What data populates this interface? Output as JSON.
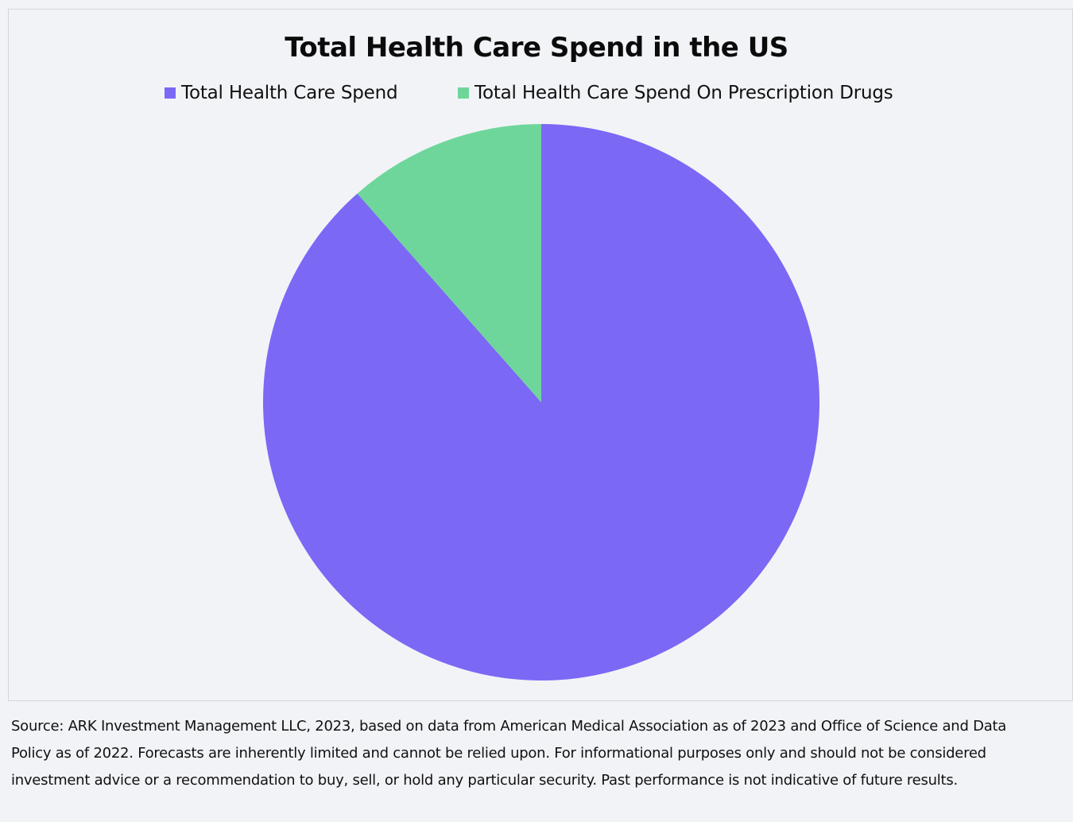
{
  "chart_data": {
    "type": "pie",
    "title": "Total Health Care Spend in the US",
    "legend_position": "top",
    "slices": [
      {
        "label": "Total Health Care Spend",
        "value": 88.5,
        "color": "#7b68f5"
      },
      {
        "label": "Total Health Care Spend On Prescription Drugs",
        "value": 11.5,
        "color": "#6fd69b"
      }
    ],
    "start_angle_deg": 0,
    "direction": "clockwise"
  },
  "footnote": "Source: ARK Investment Management LLC, 2023, based on data from American Medical Association as of 2023 and Office of Science and Data Policy as of 2022. Forecasts are inherently limited and cannot be relied upon. For informational purposes only and should not be considered investment advice or a recommendation to buy, sell, or hold any particular security. Past performance is not indicative of future results."
}
